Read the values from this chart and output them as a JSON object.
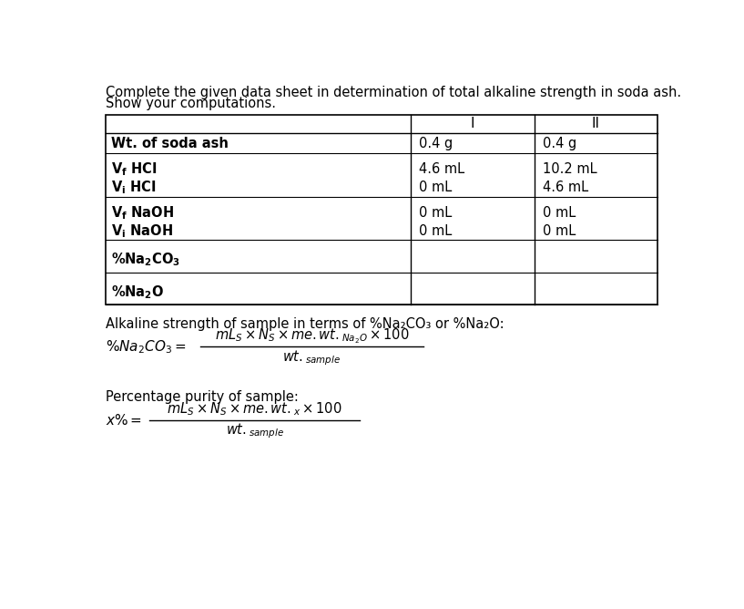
{
  "title_line1": "Complete the given data sheet in determination of total alkaline strength in soda ash.",
  "title_line2": "Show your computations.",
  "bg_color": "#ffffff",
  "text_color": "#000000",
  "alkaline_label": "Alkaline strength of sample in terms of %Na₂CO₃ or %Na₂O:",
  "purity_label": "Percentage purity of sample:"
}
